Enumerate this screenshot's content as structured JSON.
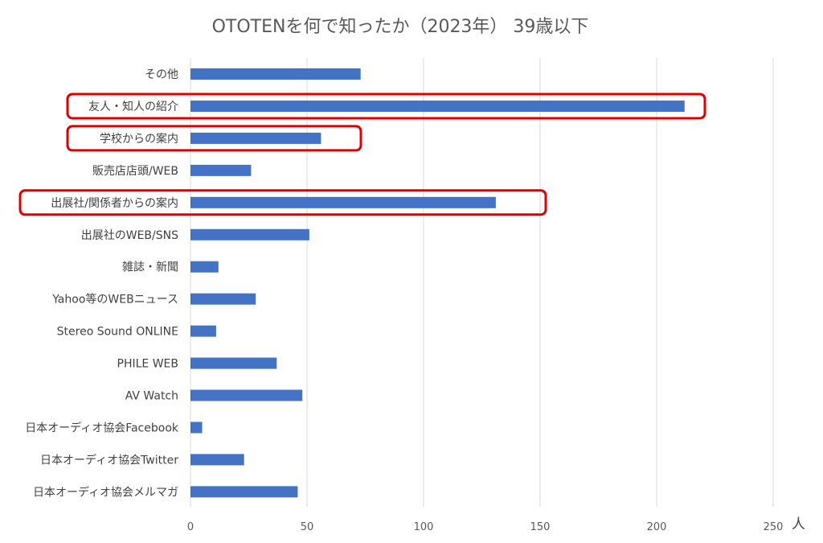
{
  "chart_data": {
    "type": "bar",
    "orientation": "horizontal",
    "title": "OTOTENを何で知ったか（2023年） 39歳以下",
    "xlabel": "人",
    "ylabel": "",
    "xlim": [
      0,
      250
    ],
    "xticks": [
      0,
      50,
      100,
      150,
      200,
      250
    ],
    "grid": true,
    "categories": [
      "その他",
      "友人・知人の紹介",
      "学校からの案内",
      "販売店店頭/WEB",
      "出展社/関係者からの案内",
      "出展社のWEB/SNS",
      "雑誌・新聞",
      "Yahoo等のWEBニュース",
      "Stereo Sound ONLINE",
      "PHILE WEB",
      "AV Watch",
      "日本オーディオ協会Facebook",
      "日本オーディオ協会Twitter",
      "日本オーディオ協会メルマガ"
    ],
    "values": [
      73,
      212,
      56,
      26,
      131,
      51,
      12,
      28,
      11,
      37,
      48,
      5,
      23,
      46
    ],
    "highlighted": [
      1,
      2,
      4
    ],
    "bar_color": "#4472C4",
    "highlight_color": "#E00000",
    "grid_color": "#D9D9D9"
  }
}
